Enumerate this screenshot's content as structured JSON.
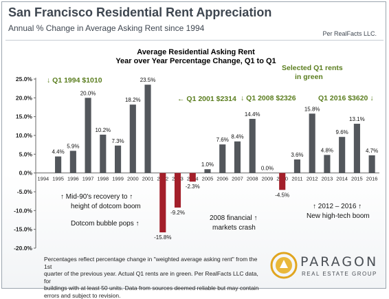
{
  "header": {
    "title": "San Francisco Residential Rent Appreciation",
    "subtitle": "Annual % Change in Average Asking Rent since 1994",
    "source": "Per RealFacts LLC."
  },
  "chart_data": {
    "type": "bar",
    "title": "Average Residential Asking Rent\nYear over Year Percentage Change,  Q1 to Q1",
    "xlabel": "",
    "ylabel": "",
    "ylim": [
      -20,
      25
    ],
    "yticks": [
      "-20.0%",
      "-15.0%",
      "-10.0%",
      "-5.0%",
      "0.0%",
      "5.0%",
      "10.0%",
      "15.0%",
      "20.0%",
      "25.0%"
    ],
    "grid": false,
    "categories": [
      "1994",
      "1995",
      "1996",
      "1997",
      "1998",
      "1999",
      "2000",
      "2001",
      "2002",
      "2003",
      "2004",
      "2005",
      "2006",
      "2007",
      "2008",
      "2009",
      "2010",
      "2011",
      "2012",
      "2013",
      "2014",
      "2015",
      "2016"
    ],
    "values": [
      null,
      4.4,
      5.9,
      20.0,
      10.2,
      7.3,
      18.2,
      23.5,
      -15.8,
      -9.2,
      -2.3,
      1.0,
      7.6,
      8.4,
      14.4,
      0.0,
      -4.5,
      3.6,
      15.8,
      4.8,
      9.6,
      13.1,
      4.7
    ],
    "data_labels": [
      "",
      "4.4%",
      "5.9%",
      "20.0%",
      "10.2%",
      "7.3%",
      "18.2%",
      "23.5%",
      "-15.8%",
      "-9.2%",
      "-2.3%",
      "1.0%",
      "7.6%",
      "8.4%",
      "14.4%",
      "0.0%",
      "-4.5%",
      "3.6%",
      "15.8%",
      "4.8%",
      "9.6%",
      "13.1%",
      "4.7%"
    ],
    "colors": {
      "positive": "#53575c",
      "negative": "#a31f2a"
    },
    "annotations": {
      "q1_1994": "↓ Q1 1994 $1010",
      "q1_2001": "← Q1 2001 $2314",
      "q1_2008": "↓ Q1 2008 $2326",
      "q1_2016": "Q1 2016 $3620 ↓",
      "selected_1": "Selected Q1 rents",
      "selected_2": "in green",
      "mid90_1": "↑ Mid-90's recovery to ↑",
      "mid90_2": "height of dotcom boom",
      "dotcom": "Dotcom bubble pops ↑",
      "crash_1": "2008 financial ↑",
      "crash_2": "markets crash",
      "boom_1": "↑ 2012 – 2016 ↑",
      "boom_2": "New high-tech boom"
    },
    "annotation_colors": {
      "green": "#5a7d1e",
      "dark": "#111111"
    }
  },
  "footer": {
    "line_1": "Percentages reflect percentage change in \"weighted average asking rent\" from the 1st",
    "line_2": "quarter of the previous year. Actual Q1 rents are in green. Per RealFacts LLC data, for",
    "line_3": "buildings with at least 50 units. Data from sources deemed reliable but may contain",
    "line_4": "errors and subject to revision."
  },
  "logo": {
    "name": "PARAGON",
    "tagline": "REAL ESTATE GROUP"
  }
}
